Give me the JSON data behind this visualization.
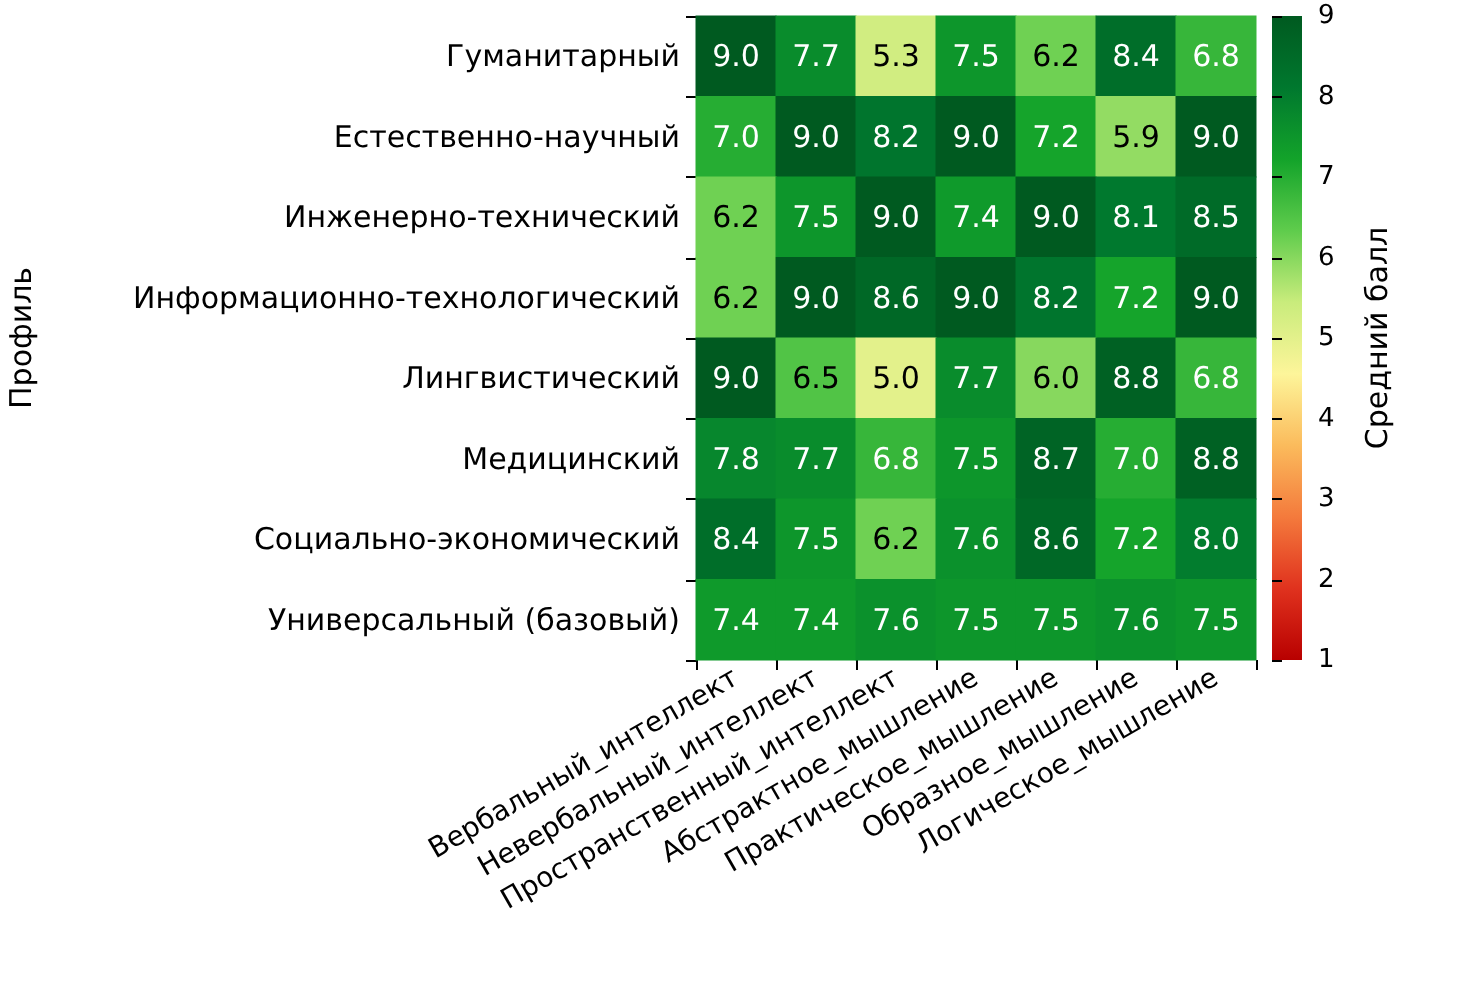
{
  "chart_data": {
    "type": "heatmap",
    "ylabel": "Профиль",
    "clabel": "Средний балл",
    "categories": [
      "Вербальный_интеллект",
      "Невербальный_интеллект",
      "Пространственный_интеллект",
      "Абстрактное_мышление",
      "Практическое_мышление",
      "Образное_мышление",
      "Логическое_мышление"
    ],
    "y_categories": [
      "Гуманитарный",
      "Естественно-научный",
      "Инженерно-технический",
      "Информационно-технологический",
      "Лингвистический",
      "Медицинский",
      "Социально-экономический",
      "Универсальный (базовый)"
    ],
    "cells": [
      [
        9.0,
        7.7,
        5.3,
        7.5,
        6.2,
        8.4,
        6.8
      ],
      [
        7.0,
        9.0,
        8.2,
        9.0,
        7.2,
        5.9,
        9.0
      ],
      [
        6.2,
        7.5,
        9.0,
        7.4,
        9.0,
        8.1,
        8.5
      ],
      [
        6.2,
        9.0,
        8.6,
        9.0,
        8.2,
        7.2,
        9.0
      ],
      [
        9.0,
        6.5,
        5.0,
        7.7,
        6.0,
        8.8,
        6.8
      ],
      [
        7.8,
        7.7,
        6.8,
        7.5,
        8.7,
        7.0,
        8.8
      ],
      [
        8.4,
        7.5,
        6.2,
        7.6,
        8.6,
        7.2,
        8.0
      ],
      [
        7.4,
        7.4,
        7.6,
        7.5,
        7.5,
        7.6,
        7.5
      ]
    ],
    "cell_labels": [
      [
        "9.0",
        "7.7",
        "5.3",
        "7.5",
        "6.2",
        "8.4",
        "6.8"
      ],
      [
        "7.0",
        "9.0",
        "8.2",
        "9.0",
        "7.2",
        "5.9",
        "9.0"
      ],
      [
        "6.2",
        "7.5",
        "9.0",
        "7.4",
        "9.0",
        "8.1",
        "8.5"
      ],
      [
        "6.2",
        "9.0",
        "8.6",
        "9.0",
        "8.2",
        "7.2",
        "9.0"
      ],
      [
        "9.0",
        "6.5",
        "5.0",
        "7.7",
        "6.0",
        "8.8",
        "6.8"
      ],
      [
        "7.8",
        "7.7",
        "6.8",
        "7.5",
        "8.7",
        "7.0",
        "8.8"
      ],
      [
        "8.4",
        "7.5",
        "6.2",
        "7.6",
        "8.6",
        "7.2",
        "8.0"
      ],
      [
        "7.4",
        "7.4",
        "7.6",
        "7.5",
        "7.5",
        "7.6",
        "7.5"
      ]
    ],
    "clim": [
      1,
      9
    ],
    "cticks": [
      1,
      2,
      3,
      4,
      5,
      6,
      7,
      8,
      9
    ]
  }
}
